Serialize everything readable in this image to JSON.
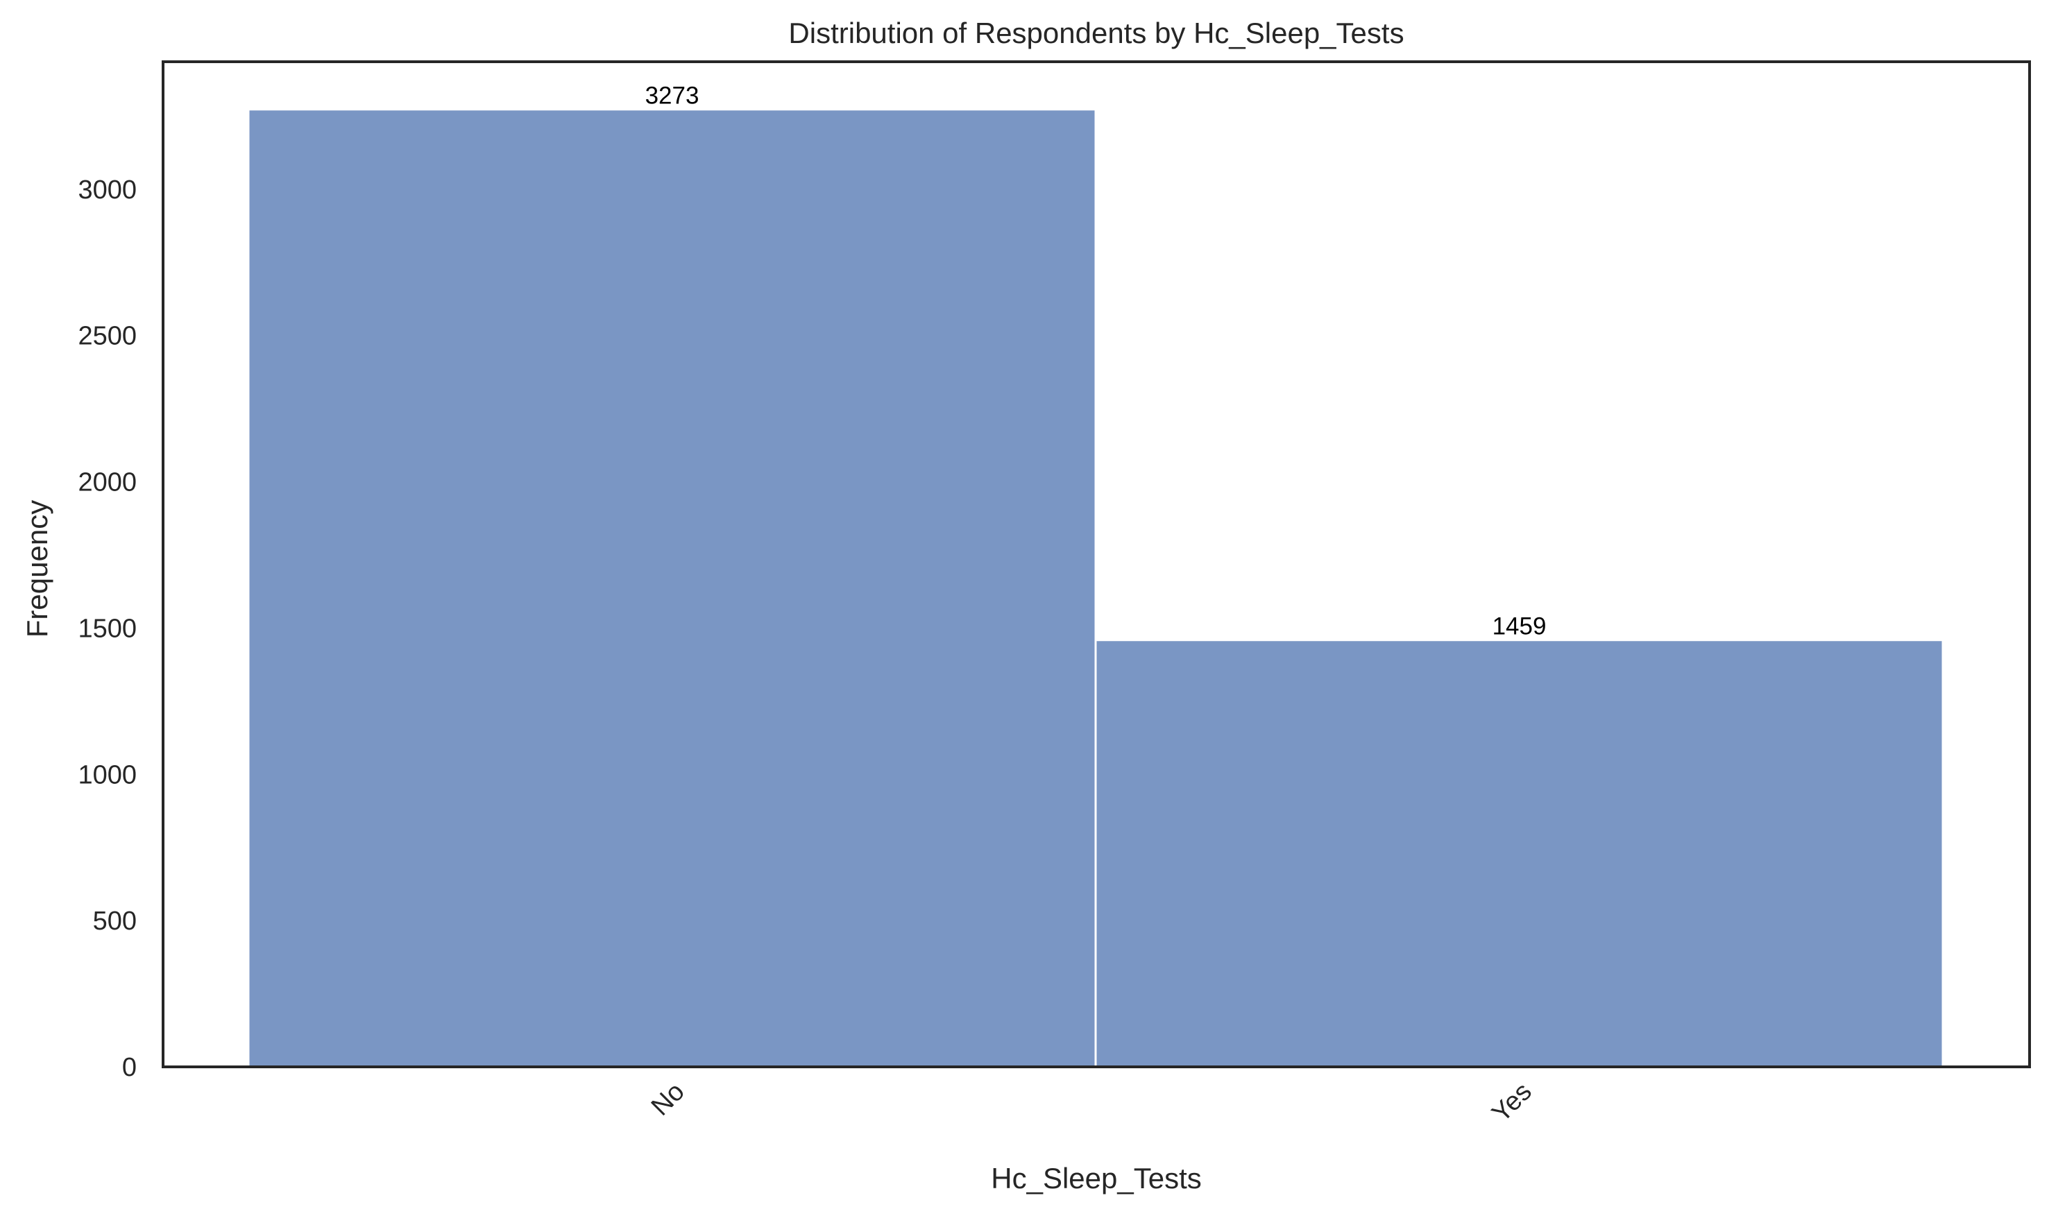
{
  "chart_data": {
    "type": "bar",
    "title": "Distribution of Respondents by Hc_Sleep_Tests",
    "xlabel": "Hc_Sleep_Tests",
    "ylabel": "Frequency",
    "categories": [
      "No",
      "Yes"
    ],
    "values": [
      3273,
      1459
    ],
    "data_labels": [
      "3273",
      "1459"
    ],
    "ylim": [
      0,
      3436
    ],
    "yticks": [
      0,
      500,
      1000,
      1500,
      2000,
      2500,
      3000
    ],
    "ytick_labels": [
      "0",
      "500",
      "1000",
      "1500",
      "2000",
      "2500",
      "3000"
    ],
    "bar_color": "#7a96c4",
    "grid": false,
    "legend": "none",
    "xtick_rotation": "45"
  }
}
